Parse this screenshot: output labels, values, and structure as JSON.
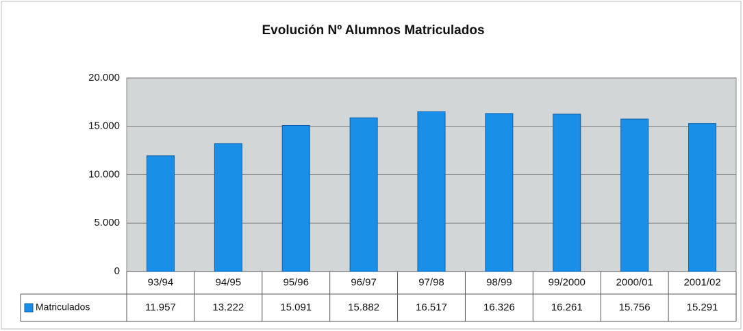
{
  "chart_data": {
    "type": "bar",
    "title": "Evolución Nº Alumnos Matriculados",
    "categories": [
      "93/94",
      "94/95",
      "95/96",
      "96/97",
      "97/98",
      "98/99",
      "99/2000",
      "2000/01",
      "2001/02"
    ],
    "series": [
      {
        "name": "Matriculados",
        "color": "#1a8fe8",
        "values": [
          11957,
          13222,
          15091,
          15882,
          16517,
          16326,
          16261,
          15756,
          15291
        ],
        "value_labels": [
          "11.957",
          "13.222",
          "15.091",
          "15.882",
          "16.517",
          "16.326",
          "16.261",
          "15.756",
          "15.291"
        ]
      }
    ],
    "ylim": [
      0,
      20000
    ],
    "yticks": [
      0,
      {
        "value": 5000,
        "label": "5.000"
      },
      {
        "value": 10000,
        "label": "10.000"
      },
      {
        "value": 15000,
        "label": "15.000"
      },
      {
        "value": 20000,
        "label": "20.000"
      }
    ],
    "grid": true
  }
}
